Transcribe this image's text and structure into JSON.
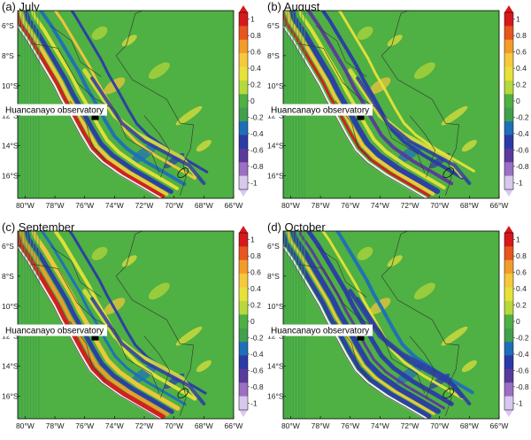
{
  "panels": [
    {
      "title": "(a) July",
      "variant": 0
    },
    {
      "title": "(b) August",
      "variant": 1
    },
    {
      "title": "(c) September",
      "variant": 2
    },
    {
      "title": "(d) October",
      "variant": 3
    }
  ],
  "lat_labels": [
    "6°S",
    "8°S",
    "10°S",
    "12°S",
    "14°S",
    "16°S"
  ],
  "lon_labels": [
    "80°W",
    "78°W",
    "76°W",
    "74°W",
    "72°W",
    "70°W",
    "68°W",
    "66°W"
  ],
  "colorbar": {
    "labels": [
      "1",
      "0.8",
      "0.6",
      "0.4",
      "0.2",
      "0",
      "-0.2",
      "-0.4",
      "-0.6",
      "-0.8",
      "-1"
    ],
    "colors": [
      "#d7191c",
      "#e8561f",
      "#f39c2a",
      "#f6c83b",
      "#e6e23a",
      "#b8d93b",
      "#4fb043",
      "#3fa04d",
      "#1f6fb8",
      "#2b3ba6",
      "#5a3a9c",
      "#9a6fc4",
      "#d8c8ee"
    ]
  },
  "observatory": {
    "label": "Huancanayo observatory",
    "lon": -75.3,
    "lat": -12.05
  },
  "extent": {
    "lon_min": -80.5,
    "lon_max": -66,
    "lat_min": -17.5,
    "lat_max": -5
  }
}
